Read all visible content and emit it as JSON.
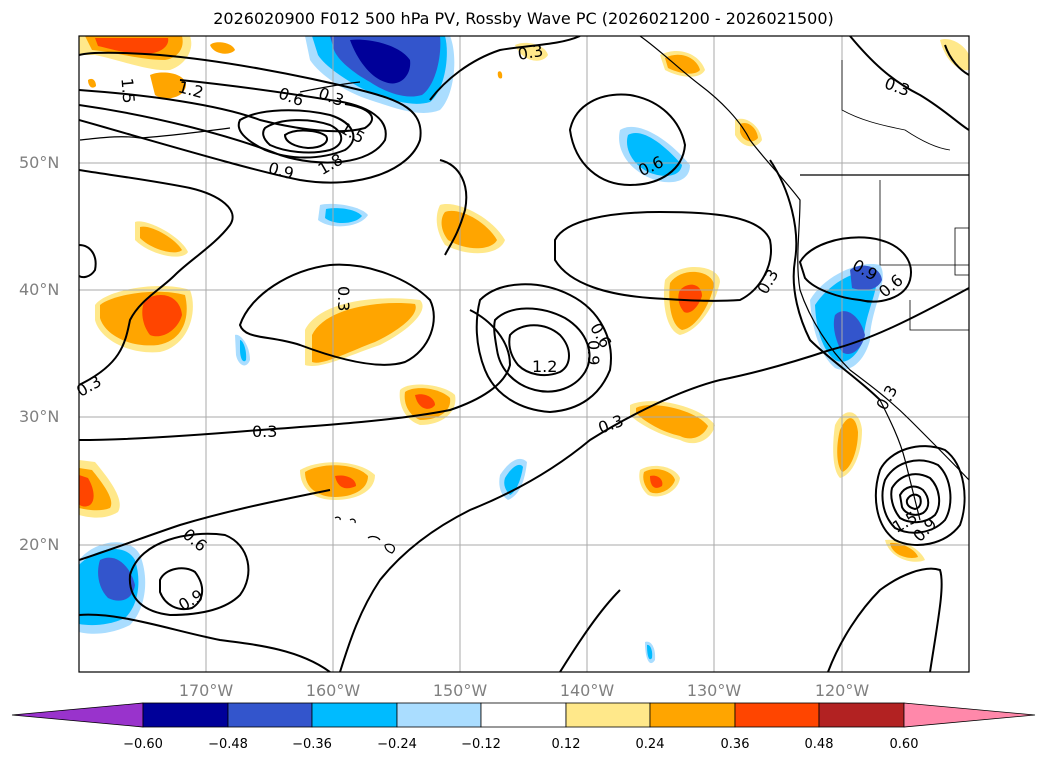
{
  "title": "2026020900 F012 500 hPa PV, Rossby Wave PC (2026021200 - 2026021500)",
  "map": {
    "lon_range": [
      -180,
      -110
    ],
    "lat_range": [
      10,
      60
    ],
    "lat_ticks": [
      "50°N",
      "40°N",
      "30°N",
      "20°N"
    ],
    "lat_tick_values": [
      50,
      40,
      30,
      20
    ],
    "lon_ticks": [
      "170°W",
      "160°W",
      "150°W",
      "140°W",
      "130°W",
      "120°W"
    ],
    "lon_tick_values": [
      -170,
      -160,
      -150,
      -140,
      -130,
      -120
    ],
    "grid": true,
    "contour_labels": [
      "1.5",
      "1.2",
      "0.6",
      "0.3",
      "1.5",
      "1.8",
      "0.9",
      "0.3",
      "0.3",
      "0.6",
      "0.3",
      "0.9",
      "0.6",
      "1.2",
      "0.6",
      "0.9",
      "0.3",
      "0.3",
      "0.6",
      "0.9",
      "0.3",
      "1.5",
      "0.9",
      "0.3",
      "0.3"
    ]
  },
  "colorbar": {
    "ticks": [
      "−0.60",
      "−0.48",
      "−0.36",
      "−0.24",
      "−0.12",
      "0.12",
      "0.24",
      "0.36",
      "0.48",
      "0.60"
    ],
    "colors": [
      "#9933cc",
      "#000099",
      "#3355cc",
      "#00bbff",
      "#aaddff",
      "#ffffff",
      "#ffe88a",
      "#ffa500",
      "#ff4500",
      "#b22222",
      "#ff88aa"
    ]
  }
}
